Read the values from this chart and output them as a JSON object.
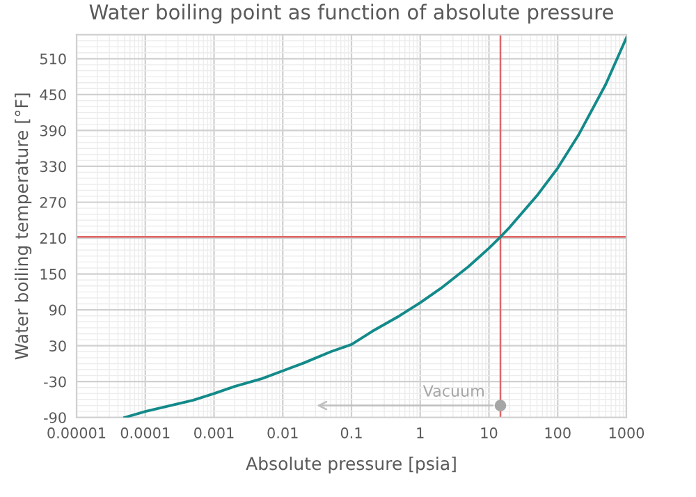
{
  "chart_data": {
    "type": "line",
    "title": "Water boiling point as function of absolute pressure",
    "xlabel": "Absolute pressure [psia]",
    "ylabel": "Water boiling temperature [°F]",
    "log": "x",
    "xlim": [
      1e-05,
      1000
    ],
    "xticks": [
      {
        "value": 1e-05,
        "label": "0.00001"
      },
      {
        "value": 0.0001,
        "label": "0.0001"
      },
      {
        "value": 0.001,
        "label": "0.001"
      },
      {
        "value": 0.01,
        "label": "0.01"
      },
      {
        "value": 0.1,
        "label": "0.1"
      },
      {
        "value": 1,
        "label": "1"
      },
      {
        "value": 10,
        "label": "10"
      },
      {
        "value": 100,
        "label": "100"
      },
      {
        "value": 1000,
        "label": "1000"
      }
    ],
    "ylim": [
      -90,
      550
    ],
    "yticks": [
      -90,
      -30,
      30,
      90,
      150,
      210,
      270,
      330,
      390,
      450,
      510
    ],
    "grid": true,
    "marker": "none",
    "line_style": "solid",
    "x": [
      5e-05,
      0.0001,
      0.0005,
      0.001,
      0.002,
      0.005,
      0.01,
      0.02,
      0.05,
      0.1,
      0.2,
      0.5,
      1,
      2,
      5,
      10,
      14.7,
      20,
      50,
      100,
      200,
      500,
      1000
    ],
    "series": [
      {
        "color": "#138a8a",
        "values": [
          -90,
          -80,
          -61,
          -50,
          -38,
          -25,
          -12,
          1,
          20,
          32,
          54,
          80,
          102,
          126,
          162,
          193,
          212,
          228,
          281,
          327,
          382,
          467,
          545
        ]
      }
    ],
    "ref_lines": [
      {
        "axis": "x",
        "value": 14.7,
        "color": "#e06666"
      },
      {
        "axis": "y",
        "value": 212,
        "color": "#e06666"
      }
    ],
    "annotations": [
      {
        "text": "Vacuum",
        "x": 14.7,
        "y": -70
      }
    ]
  }
}
